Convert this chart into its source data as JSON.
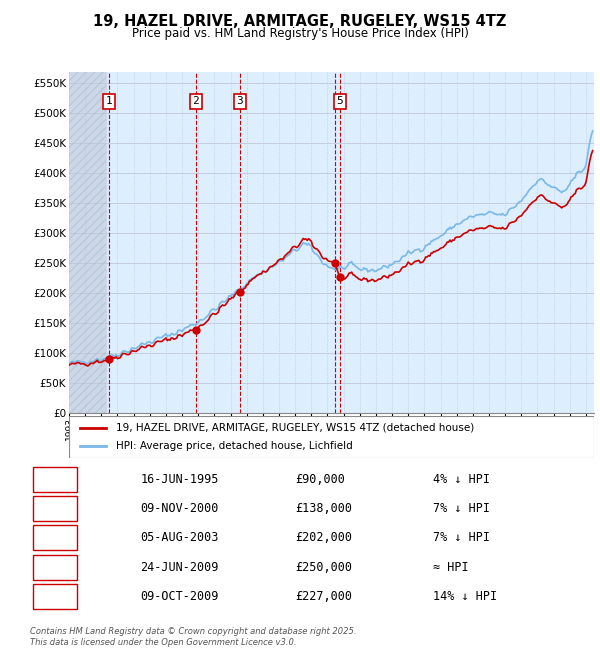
{
  "title": "19, HAZEL DRIVE, ARMITAGE, RUGELEY, WS15 4TZ",
  "subtitle": "Price paid vs. HM Land Registry's House Price Index (HPI)",
  "ylim": [
    0,
    570000
  ],
  "xlim_start": 1993.0,
  "xlim_end": 2025.5,
  "sale_dates": [
    1995.458,
    2000.856,
    2003.589,
    2009.479,
    2009.769
  ],
  "sale_prices": [
    90000,
    138000,
    202000,
    250000,
    227000
  ],
  "sale_labels": [
    "1",
    "2",
    "3",
    "4",
    "5"
  ],
  "sale_label_show": [
    true,
    true,
    true,
    false,
    true
  ],
  "hpi_color": "#7ab8e8",
  "price_color": "#cc0000",
  "vline_color": "#cc0000",
  "chart_bg": "#ddeeff",
  "grid_color": "#bbbbcc",
  "legend_house_label": "19, HAZEL DRIVE, ARMITAGE, RUGELEY, WS15 4TZ (detached house)",
  "legend_hpi_label": "HPI: Average price, detached house, Lichfield",
  "table_rows": [
    [
      "1",
      "16-JUN-1995",
      "£90,000",
      "4% ↓ HPI"
    ],
    [
      "2",
      "09-NOV-2000",
      "£138,000",
      "7% ↓ HPI"
    ],
    [
      "3",
      "05-AUG-2003",
      "£202,000",
      "7% ↓ HPI"
    ],
    [
      "4",
      "24-JUN-2009",
      "£250,000",
      "≈ HPI"
    ],
    [
      "5",
      "09-OCT-2009",
      "£227,000",
      "14% ↓ HPI"
    ]
  ],
  "footnote": "Contains HM Land Registry data © Crown copyright and database right 2025.\nThis data is licensed under the Open Government Licence v3.0."
}
